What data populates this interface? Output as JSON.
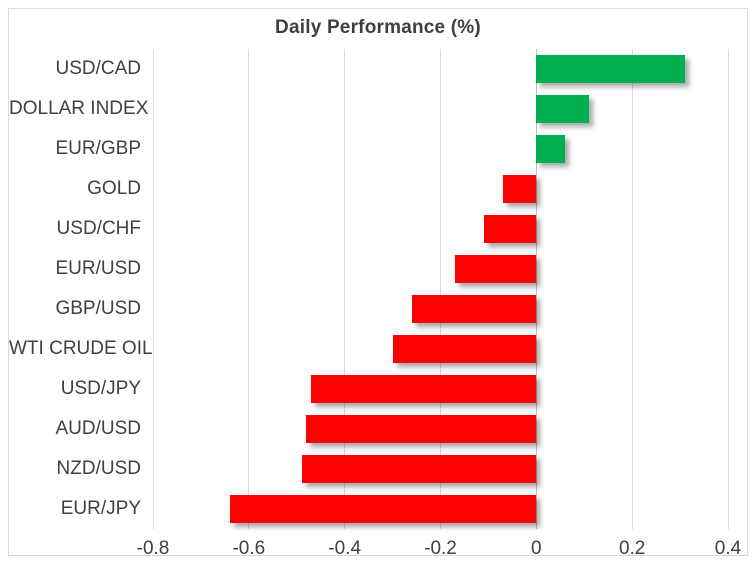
{
  "colors": {
    "positive": "#00B050",
    "negative": "#FF0000",
    "gridline": "#D9D9D9",
    "zero_axis": "#BFBFBF",
    "text": "#404040",
    "frame_border": "#D9D9D9",
    "background": "#FFFFFF"
  },
  "chart_data": {
    "type": "bar",
    "orientation": "horizontal",
    "title": "Daily Performance (%)",
    "categories": [
      "USD/CAD",
      "DOLLAR INDEX",
      "EUR/GBP",
      "GOLD",
      "USD/CHF",
      "EUR/USD",
      "GBP/USD",
      "WTI CRUDE OIL",
      "USD/JPY",
      "AUD/USD",
      "NZD/USD",
      "EUR/JPY"
    ],
    "values": [
      0.31,
      0.11,
      0.06,
      -0.07,
      -0.11,
      -0.17,
      -0.26,
      -0.3,
      -0.47,
      -0.48,
      -0.49,
      -0.64
    ],
    "xlabel": "",
    "ylabel": "",
    "xlim": [
      -0.8,
      0.4
    ],
    "xticks": [
      -0.8,
      -0.6,
      -0.4,
      -0.2,
      0,
      0.2,
      0.4
    ],
    "xtick_labels": [
      "-0.8",
      "-0.6",
      "-0.4",
      "-0.2",
      "0",
      "0.2",
      "0.4"
    ],
    "grid": true,
    "legend": false,
    "color_rule": "green for positive values, red for negative values"
  }
}
